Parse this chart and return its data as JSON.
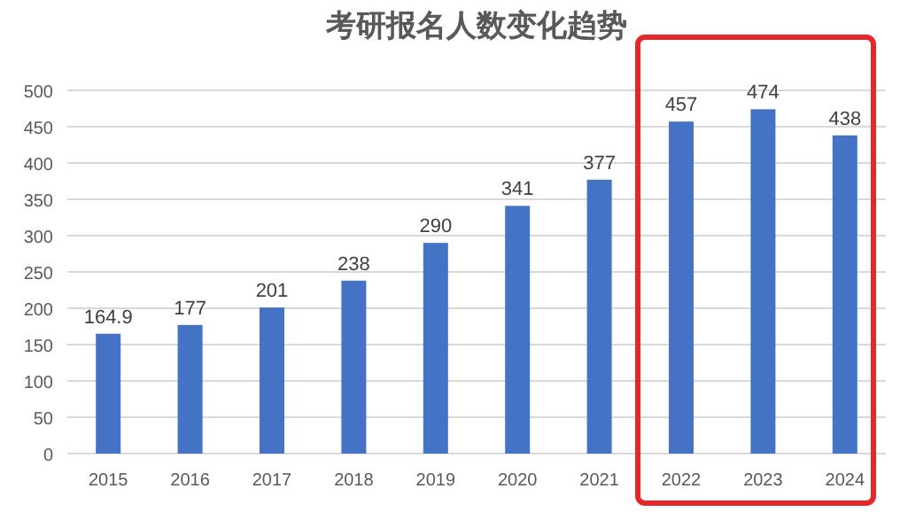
{
  "chart_data": {
    "type": "bar",
    "title": "考研报名人数变化趋势",
    "categories": [
      "2015",
      "2016",
      "2017",
      "2018",
      "2019",
      "2020",
      "2021",
      "2022",
      "2023",
      "2024"
    ],
    "values": [
      164.9,
      177,
      201,
      238,
      290,
      341,
      377,
      457,
      474,
      438
    ],
    "color": "#4472c4",
    "ylim": [
      0,
      500
    ],
    "yticks": [
      0,
      50,
      100,
      150,
      200,
      250,
      300,
      350,
      400,
      450,
      500
    ],
    "grid": "y",
    "data_labels": true
  }
}
